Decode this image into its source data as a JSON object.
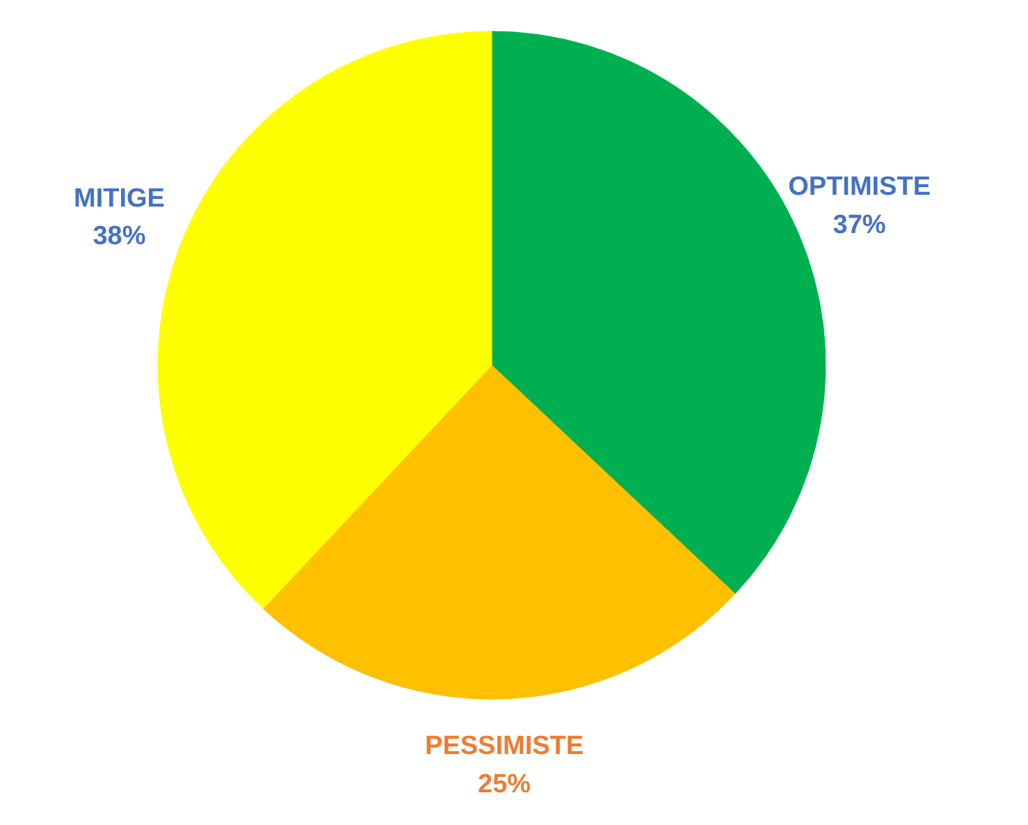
{
  "chart_data": {
    "type": "pie",
    "categories": [
      "OPTIMISTE",
      "PESSIMISTE",
      "MITIGE"
    ],
    "values": [
      37,
      25,
      38
    ],
    "colors": [
      "#00b050",
      "#ffc000",
      "#ffff00"
    ],
    "value_labels": [
      "37%",
      "25%",
      "38%"
    ]
  }
}
